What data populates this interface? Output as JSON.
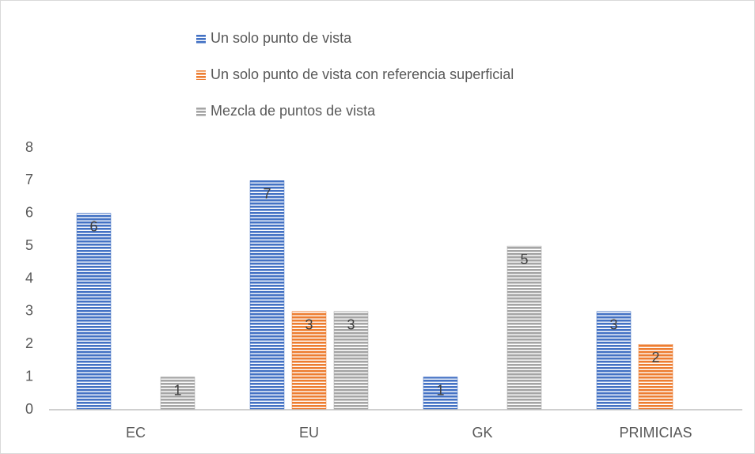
{
  "chart_data": {
    "type": "bar",
    "categories": [
      "EC",
      "EU",
      "GK",
      "PRIMICIAS"
    ],
    "series": [
      {
        "name": "Un solo punto de vista",
        "color": "#4472c4",
        "values": [
          6,
          7,
          1,
          3
        ]
      },
      {
        "name": "Un solo punto de vista con referencia superficial",
        "color": "#ed7d31",
        "values": [
          null,
          3,
          null,
          2
        ]
      },
      {
        "name": "Mezcla de puntos de vista",
        "color": "#a5a5a5",
        "values": [
          1,
          3,
          5,
          null
        ]
      }
    ],
    "ylim": [
      0,
      8
    ],
    "yticks": [
      0,
      1,
      2,
      3,
      4,
      5,
      6,
      7,
      8
    ],
    "grid": false,
    "legend": "top",
    "data_labels": true
  }
}
